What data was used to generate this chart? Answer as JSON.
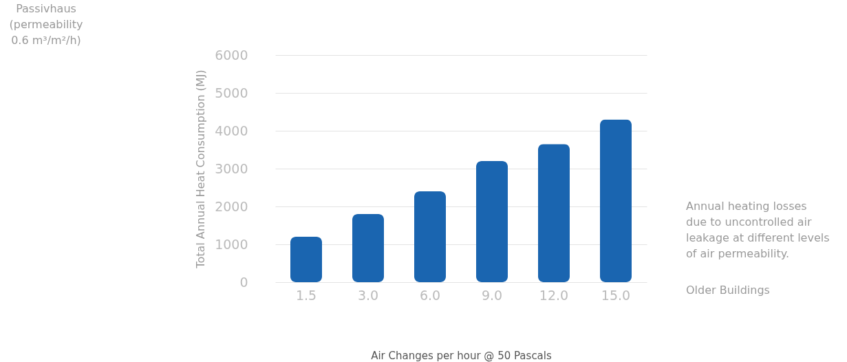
{
  "chart_data": {
    "type": "bar",
    "xlabel": "Air Changes per hour @ 50 Pascals",
    "ylabel": "Total Annual Heat Consumption  (MJ)",
    "categories": [
      "1.5",
      "3.0",
      "6.0",
      "9.0",
      "12.0",
      "15.0"
    ],
    "values": [
      1200,
      1800,
      2400,
      3200,
      3650,
      4300
    ],
    "color": "#1a65b0",
    "ylim": [
      0,
      6000
    ],
    "yticks": [
      0,
      1000,
      2000,
      3000,
      4000,
      5000,
      6000
    ],
    "grid": "y",
    "annotations": [
      "Passivhaus\n(permeability\n0.6 m³/m²/h)",
      "Annual heating losses\ndue to uncontrolled air\nleakage at different levels\nof air permeability.",
      "Older Buildings"
    ]
  }
}
